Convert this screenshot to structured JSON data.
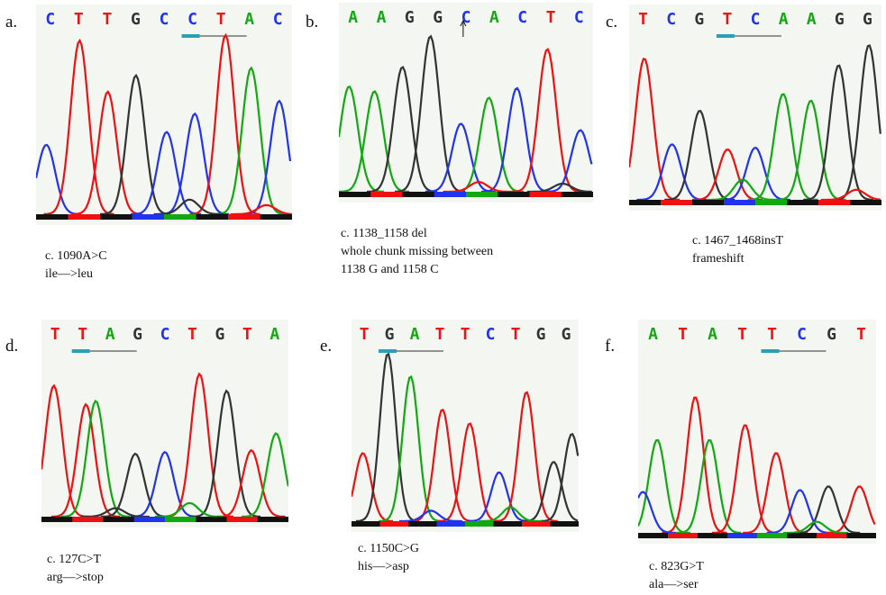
{
  "colors": {
    "A": "#12a812",
    "C": "#2233ee",
    "G": "#333333",
    "T": "#ee1111",
    "marker": "#2b9fb5"
  },
  "panels": [
    {
      "label": "a.",
      "bases": [
        "C",
        "T",
        "T",
        "G",
        "C",
        "C",
        "T",
        "A",
        "C"
      ],
      "marker_base_index": 5,
      "has_arrow": false,
      "caption": [
        "c. 1090A>C",
        "ile—>leu"
      ],
      "peaks": [
        {
          "b": "C",
          "x": 0.04,
          "h": 0.38
        },
        {
          "b": "T",
          "x": 0.17,
          "h": 0.95
        },
        {
          "b": "T",
          "x": 0.28,
          "h": 0.67
        },
        {
          "b": "G",
          "x": 0.39,
          "h": 0.76
        },
        {
          "b": "C",
          "x": 0.51,
          "h": 0.45
        },
        {
          "b": "C",
          "x": 0.62,
          "h": 0.55
        },
        {
          "b": "T",
          "x": 0.74,
          "h": 0.98
        },
        {
          "b": "A",
          "x": 0.84,
          "h": 0.8
        },
        {
          "b": "C",
          "x": 0.95,
          "h": 0.62
        },
        {
          "b": "T",
          "x": 0.9,
          "h": 0.05
        },
        {
          "b": "G",
          "x": 0.6,
          "h": 0.08
        }
      ]
    },
    {
      "label": "b.",
      "bases": [
        "A",
        "A",
        "G",
        "G",
        "C",
        "A",
        "C",
        "T",
        "C"
      ],
      "marker_base_index": -1,
      "has_arrow": true,
      "caption": [
        "c. 1138_1158 del",
        "whole chunk missing between",
        "1138 G and 1158 C"
      ],
      "peaks": [
        {
          "b": "A",
          "x": 0.04,
          "h": 0.65
        },
        {
          "b": "A",
          "x": 0.14,
          "h": 0.62
        },
        {
          "b": "G",
          "x": 0.25,
          "h": 0.77
        },
        {
          "b": "G",
          "x": 0.36,
          "h": 0.96
        },
        {
          "b": "C",
          "x": 0.48,
          "h": 0.42
        },
        {
          "b": "A",
          "x": 0.59,
          "h": 0.58
        },
        {
          "b": "C",
          "x": 0.7,
          "h": 0.64
        },
        {
          "b": "T",
          "x": 0.82,
          "h": 0.88
        },
        {
          "b": "C",
          "x": 0.95,
          "h": 0.38
        },
        {
          "b": "T",
          "x": 0.55,
          "h": 0.06
        },
        {
          "b": "G",
          "x": 0.88,
          "h": 0.05
        }
      ]
    },
    {
      "label": "c.",
      "bases": [
        "T",
        "C",
        "G",
        "T",
        "C",
        "A",
        "A",
        "G",
        "G"
      ],
      "marker_base_index": 3,
      "has_arrow": false,
      "caption": [
        "c. 1467_1468insT",
        "frameshift"
      ],
      "peaks": [
        {
          "b": "T",
          "x": 0.06,
          "h": 0.84
        },
        {
          "b": "C",
          "x": 0.17,
          "h": 0.33
        },
        {
          "b": "G",
          "x": 0.28,
          "h": 0.53
        },
        {
          "b": "T",
          "x": 0.39,
          "h": 0.3
        },
        {
          "b": "C",
          "x": 0.5,
          "h": 0.31
        },
        {
          "b": "A",
          "x": 0.61,
          "h": 0.63
        },
        {
          "b": "A",
          "x": 0.72,
          "h": 0.59
        },
        {
          "b": "G",
          "x": 0.83,
          "h": 0.8
        },
        {
          "b": "G",
          "x": 0.95,
          "h": 0.92
        },
        {
          "b": "A",
          "x": 0.45,
          "h": 0.12
        },
        {
          "b": "T",
          "x": 0.9,
          "h": 0.06
        }
      ]
    },
    {
      "label": "d.",
      "bases": [
        "T",
        "T",
        "A",
        "G",
        "C",
        "T",
        "G",
        "T",
        "A"
      ],
      "marker_base_index": 1,
      "has_arrow": false,
      "caption": [
        "c. 127C>T",
        "arg—>stop"
      ],
      "peaks": [
        {
          "b": "T",
          "x": 0.05,
          "h": 0.77
        },
        {
          "b": "T",
          "x": 0.18,
          "h": 0.66
        },
        {
          "b": "A",
          "x": 0.22,
          "h": 0.68
        },
        {
          "b": "G",
          "x": 0.38,
          "h": 0.37
        },
        {
          "b": "C",
          "x": 0.5,
          "h": 0.38
        },
        {
          "b": "T",
          "x": 0.64,
          "h": 0.84
        },
        {
          "b": "G",
          "x": 0.75,
          "h": 0.74
        },
        {
          "b": "T",
          "x": 0.85,
          "h": 0.39
        },
        {
          "b": "A",
          "x": 0.95,
          "h": 0.49
        },
        {
          "b": "A",
          "x": 0.6,
          "h": 0.08
        },
        {
          "b": "G",
          "x": 0.3,
          "h": 0.05
        }
      ]
    },
    {
      "label": "e.",
      "bases": [
        "T",
        "G",
        "A",
        "T",
        "T",
        "C",
        "T",
        "G",
        "G"
      ],
      "marker_base_index": 1,
      "has_arrow": false,
      "caption": [
        "c. 1150C>G",
        "his—>asp"
      ],
      "peaks": [
        {
          "b": "T",
          "x": 0.05,
          "h": 0.39
        },
        {
          "b": "G",
          "x": 0.16,
          "h": 0.96
        },
        {
          "b": "A",
          "x": 0.26,
          "h": 0.83
        },
        {
          "b": "T",
          "x": 0.4,
          "h": 0.64
        },
        {
          "b": "T",
          "x": 0.52,
          "h": 0.56
        },
        {
          "b": "C",
          "x": 0.65,
          "h": 0.28
        },
        {
          "b": "T",
          "x": 0.77,
          "h": 0.74
        },
        {
          "b": "G",
          "x": 0.89,
          "h": 0.34
        },
        {
          "b": "G",
          "x": 0.97,
          "h": 0.5
        },
        {
          "b": "A",
          "x": 0.7,
          "h": 0.08
        },
        {
          "b": "C",
          "x": 0.35,
          "h": 0.06
        }
      ]
    },
    {
      "label": "f.",
      "bases": [
        "A",
        "T",
        "A",
        "T",
        "T",
        "C",
        "G",
        "T"
      ],
      "marker_base_index": 4,
      "has_arrow": false,
      "caption": [
        "c. 823G>T",
        "ala—>ser"
      ],
      "peaks": [
        {
          "b": "A",
          "x": 0.08,
          "h": 0.5
        },
        {
          "b": "T",
          "x": 0.24,
          "h": 0.73
        },
        {
          "b": "A",
          "x": 0.3,
          "h": 0.5
        },
        {
          "b": "T",
          "x": 0.45,
          "h": 0.58
        },
        {
          "b": "T",
          "x": 0.58,
          "h": 0.43
        },
        {
          "b": "C",
          "x": 0.68,
          "h": 0.23
        },
        {
          "b": "G",
          "x": 0.8,
          "h": 0.25
        },
        {
          "b": "T",
          "x": 0.93,
          "h": 0.25
        },
        {
          "b": "C",
          "x": 0.02,
          "h": 0.22
        },
        {
          "b": "A",
          "x": 0.75,
          "h": 0.06
        }
      ]
    }
  ]
}
